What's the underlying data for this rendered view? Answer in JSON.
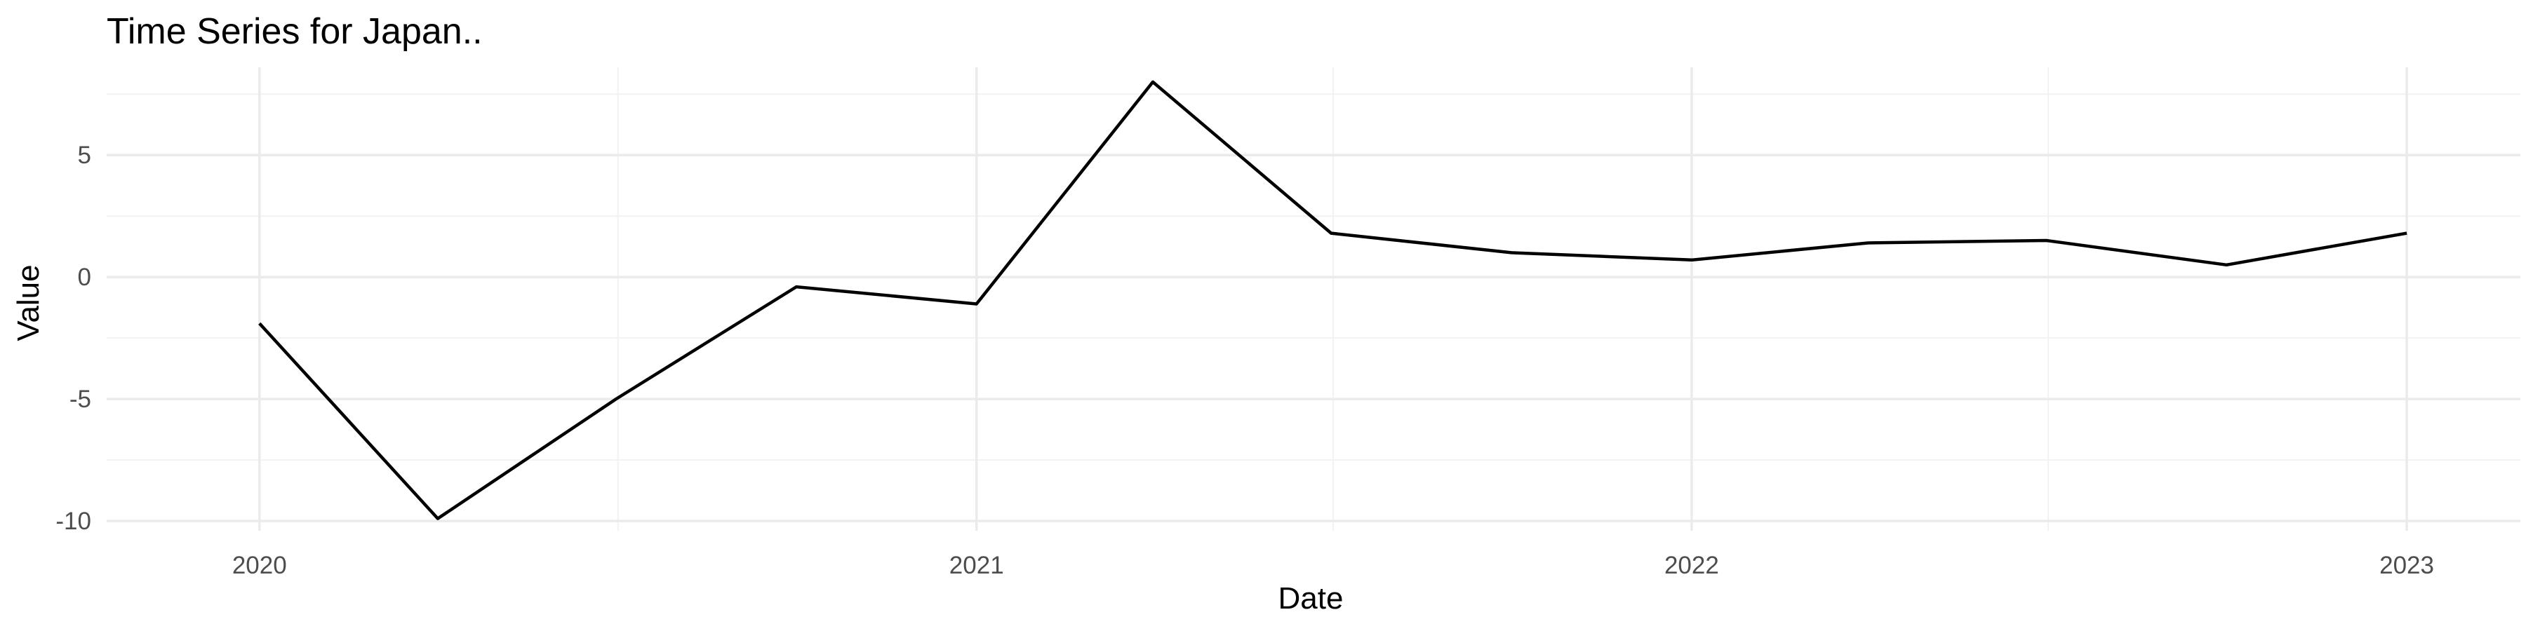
{
  "chart_data": {
    "type": "line",
    "title": "Time Series for Japan..",
    "xlabel": "Date",
    "ylabel": "Value",
    "x_ticks": [
      "2020",
      "2021",
      "2022",
      "2023"
    ],
    "y_ticks": [
      -10,
      -5,
      0,
      5
    ],
    "xlim": [
      "2019-10-15",
      "2023-02-28"
    ],
    "ylim": [
      -10.4,
      8.6
    ],
    "grid": true,
    "legend": "none",
    "series": [
      {
        "color": "#000000",
        "x": [
          "2020-01-01",
          "2020-04-01",
          "2020-07-01",
          "2020-10-01",
          "2021-01-01",
          "2021-04-01",
          "2021-07-01",
          "2021-10-01",
          "2022-01-01",
          "2022-04-01",
          "2022-07-01",
          "2022-10-01",
          "2023-01-01"
        ],
        "values": [
          -1.9,
          -9.9,
          -5.0,
          -0.4,
          -1.1,
          8.0,
          1.8,
          1.0,
          0.7,
          1.4,
          1.5,
          0.5,
          1.8
        ]
      }
    ]
  }
}
